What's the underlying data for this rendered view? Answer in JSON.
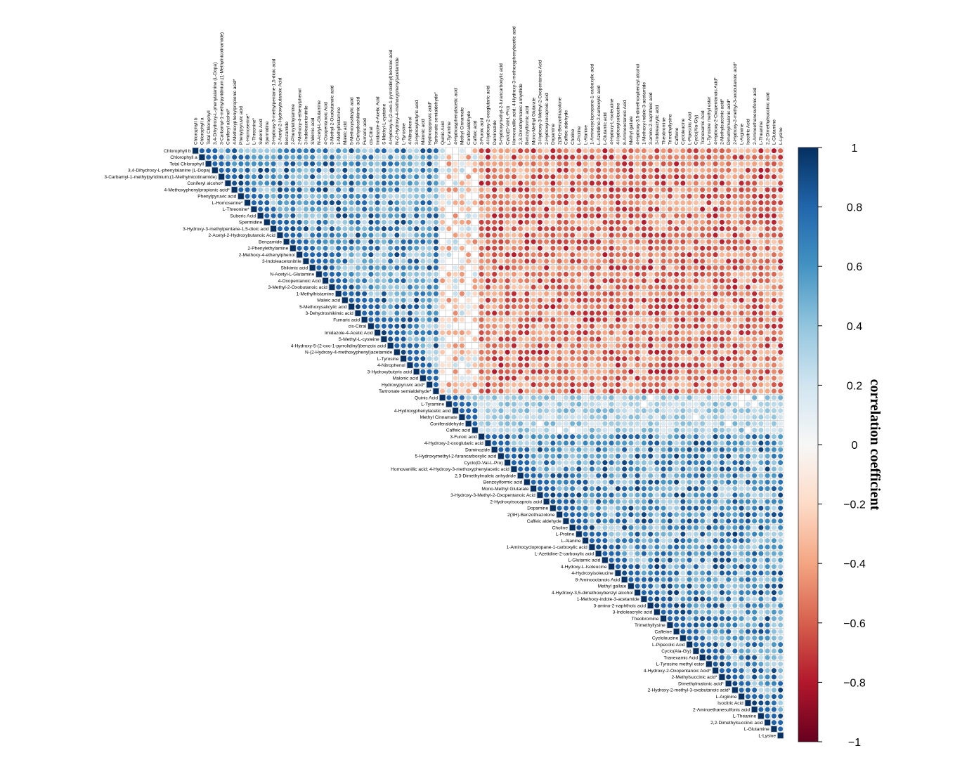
{
  "chart_data": {
    "type": "heatmap",
    "title": "",
    "subtitle": "",
    "variables": [
      "Chlorophyll b",
      "Chlorophyll a",
      "Total Chlorophyll",
      "3,4-Dihydroxy-L-phenylalanine (L-Dopa)",
      "3-Carbamyl-1-methylpyridinium;(1-Methylnicotinamide)",
      "Coniferyl alcohol*",
      "4-Methoxyphenylpropionic acid*",
      "Phenylpyruvic acid",
      "L-Homoserine*",
      "L-Threonine*",
      "Suberic Acid",
      "Spermidine",
      "3-Hydroxy-3-methylpentane-1,5-dioic acid",
      "2-Acetyl-2-Hydroxybutanoic Acid",
      "Benzamide",
      "2-Phenylethylamine",
      "2-Methoxy-4-ethenylphenol",
      "3-Indoleacetonitrile",
      "Shikimic acid",
      "N-Acetyl-L-Glutamine",
      "4-Oxopentanoic Acid",
      "3-Methyl-2-Oxobutanoic acid",
      "1-Methylhistamine",
      "Maleic acid",
      "5-Methoxysalicylic acid",
      "3-Dehydroshikimic acid",
      "Fumaric acid",
      "cis-Citral",
      "Imidazole-4-Acetic Acid",
      "S-Methyl-L-cysteine",
      "4-Hydroxy-5-(2-oxo-1-pyrrolidinyl)benzoic acid",
      "N-(2-Hydroxy-4-methoxyphenyl)acetamide",
      "L-Tyrosine",
      "4-Nitrophenol",
      "3-Hydroxybutyric acid",
      "Malonic acid",
      "Hydroxypyruvic acid*",
      "Tartronate semialdehyde*",
      "Quinic Acid",
      "L-Tyramine",
      "4-Hydroxyphenylacetic acid",
      "Methyl Cinnamate",
      "Coniferaldehyde",
      "Caffeic acid",
      "3-Furoic acid",
      "4-Hydroxy-2-oxoglutaric acid",
      "Daminozide",
      "5-Hydroxymethyl-2-furancarboxylic acid",
      "Cyclo(D-Val-L-Pro)",
      "Homovanillic acid; 4-Hydroxy-3-methoxyphenylacetic acid",
      "2,3-Dimethylmaleic anhydride",
      "Benzoylformic acid",
      "Mono-Methyl Glutarate",
      "3-Hydroxy-3-Methyl-2-Oxopentanoic Acid",
      "2-Hydroxyisocaproic acid",
      "Dopamine",
      "2(3H)-Benzothiazolone",
      "Caffeic aldehyde",
      "Choline",
      "L-Proline",
      "L-Alanine",
      "1-Aminocyclopropane-1-carboxylic acid",
      "L-Azetidine-2-carboxylic acid",
      "L-Glutamic acid",
      "4-Hydoxy-L-Isoleucine",
      "4-Hydroxyisoleucine",
      "8-Aminooctanoic Acid",
      "Methyl gallate",
      "4-Hydroxy-3,5-dimethoxybenzyl alcohol",
      "1-Methoxy-indole-3-acetamide",
      "3-amino-2-naphthoic acid",
      "3-Indoleacrylic acid",
      "Theobromine",
      "Trimethyllysine",
      "Caffeine",
      "Cycloleucine",
      "L-Pipecolic Acid",
      "Cyclo(Ala-Gly)",
      "Tranexamic Acid",
      "L-Tyrosine methyl ester",
      "4-Hydroxy-2-Oxopentanoic Acid*",
      "2-Methylsuccinic acid*",
      "Dimethylmalonic acid*",
      "2-Hydroxy-2-methyl-3-oxobutanoic acid*",
      "L-Arginine",
      "Isocitric Acid",
      "2-Aminoethanesulfonic acid",
      "L-Theanine",
      "2,2-Dimethylsuccinic acid",
      "L-Glutamine",
      "L-Lysine"
    ],
    "groups": [
      {
        "start": 0,
        "end": 37
      },
      {
        "start": 38,
        "end": 43
      },
      {
        "start": 44,
        "end": 90
      }
    ],
    "within_group_values": [
      {
        "group": 0,
        "min": 0.25,
        "max": 0.95
      },
      {
        "group": 1,
        "min": 0.2,
        "max": 0.5
      },
      {
        "group": 2,
        "min": 0.25,
        "max": 0.95
      }
    ],
    "between_group_values": [
      {
        "groups": [
          0,
          1
        ],
        "min": -0.5,
        "max": 0.3
      },
      {
        "groups": [
          0,
          2
        ],
        "min": -0.8,
        "max": -0.25
      },
      {
        "groups": [
          1,
          2
        ],
        "min": 0.1,
        "max": 0.5
      }
    ],
    "diagonal_value": 1,
    "triangle": "upper",
    "marker": "circle",
    "colorbar": {
      "title": "correlation coefficient",
      "ticks": [
        "1",
        "0.8",
        "0.6",
        "0.4",
        "0.2",
        "0",
        "−0.2",
        "−0.4",
        "−0.6",
        "−0.8",
        "−1"
      ],
      "tick_values": [
        1,
        0.8,
        0.6,
        0.4,
        0.2,
        0,
        -0.2,
        -0.4,
        -0.6,
        -0.8,
        -1
      ],
      "range": [
        -1,
        1
      ],
      "placement": "right"
    },
    "colors": {
      "positive": "#053061",
      "positive_mid": "#4393c3",
      "neutral": "#f7f7f7",
      "negative_mid": "#d6604d",
      "negative": "#67001f",
      "grid": "#cccccc"
    }
  }
}
